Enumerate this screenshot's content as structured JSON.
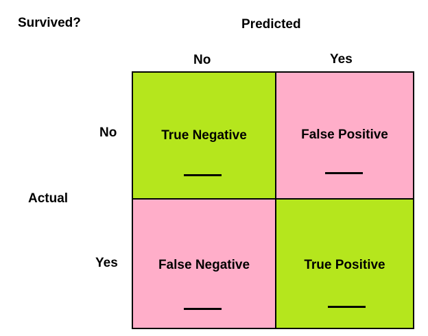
{
  "title": "Survived?",
  "predicted_label": "Predicted",
  "actual_label": "Actual",
  "predicted_classes": [
    "No",
    "Yes"
  ],
  "actual_classes": [
    "No",
    "Yes"
  ],
  "colors": {
    "correct": "#b5e61d",
    "incorrect": "#ffaec9"
  },
  "cells": {
    "true_negative": "True Negative",
    "false_positive": "False Positive",
    "false_negative": "False Negative",
    "true_positive": "True Positive"
  }
}
